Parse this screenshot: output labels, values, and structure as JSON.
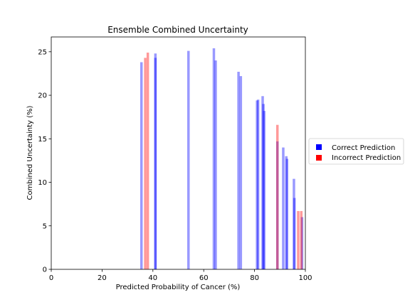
{
  "chart_data": {
    "type": "bar",
    "title": "Ensemble Combined Uncertainty",
    "xlabel": "Predicted Probability of Cancer (%)",
    "ylabel": "Combined Uncertainty (%)",
    "xlim": [
      0,
      100
    ],
    "ylim": [
      0,
      26.7
    ],
    "xticks": [
      0,
      20,
      40,
      60,
      80,
      100
    ],
    "yticks": [
      0,
      5,
      10,
      15,
      20,
      25
    ],
    "grid": false,
    "legend_placement": "center-right, outside plot",
    "series": [
      {
        "name": "Correct Prediction",
        "color": "#0000ff",
        "alpha": 0.4,
        "bars": [
          {
            "x": 35.5,
            "y": 23.8
          },
          {
            "x": 41.0,
            "y": 24.8
          },
          {
            "x": 41.0,
            "y": 24.3
          },
          {
            "x": 54.0,
            "y": 25.1
          },
          {
            "x": 64.0,
            "y": 25.4
          },
          {
            "x": 64.7,
            "y": 24.0
          },
          {
            "x": 73.7,
            "y": 22.7
          },
          {
            "x": 74.6,
            "y": 22.2
          },
          {
            "x": 81.0,
            "y": 19.4
          },
          {
            "x": 81.4,
            "y": 19.5
          },
          {
            "x": 83.2,
            "y": 19.9
          },
          {
            "x": 83.5,
            "y": 19.0
          },
          {
            "x": 83.8,
            "y": 18.2
          },
          {
            "x": 89.0,
            "y": 14.7
          },
          {
            "x": 91.3,
            "y": 14.0
          },
          {
            "x": 92.5,
            "y": 13.0
          },
          {
            "x": 92.8,
            "y": 12.7
          },
          {
            "x": 95.5,
            "y": 10.4
          },
          {
            "x": 95.7,
            "y": 8.2
          },
          {
            "x": 98.7,
            "y": 6.0
          }
        ]
      },
      {
        "name": "Incorrect Prediction",
        "color": "#ff0000",
        "alpha": 0.4,
        "bars": [
          {
            "x": 37.0,
            "y": 24.3
          },
          {
            "x": 38.0,
            "y": 24.9
          },
          {
            "x": 89.0,
            "y": 16.6
          },
          {
            "x": 97.2,
            "y": 6.7
          },
          {
            "x": 98.4,
            "y": 6.7
          }
        ]
      }
    ]
  }
}
